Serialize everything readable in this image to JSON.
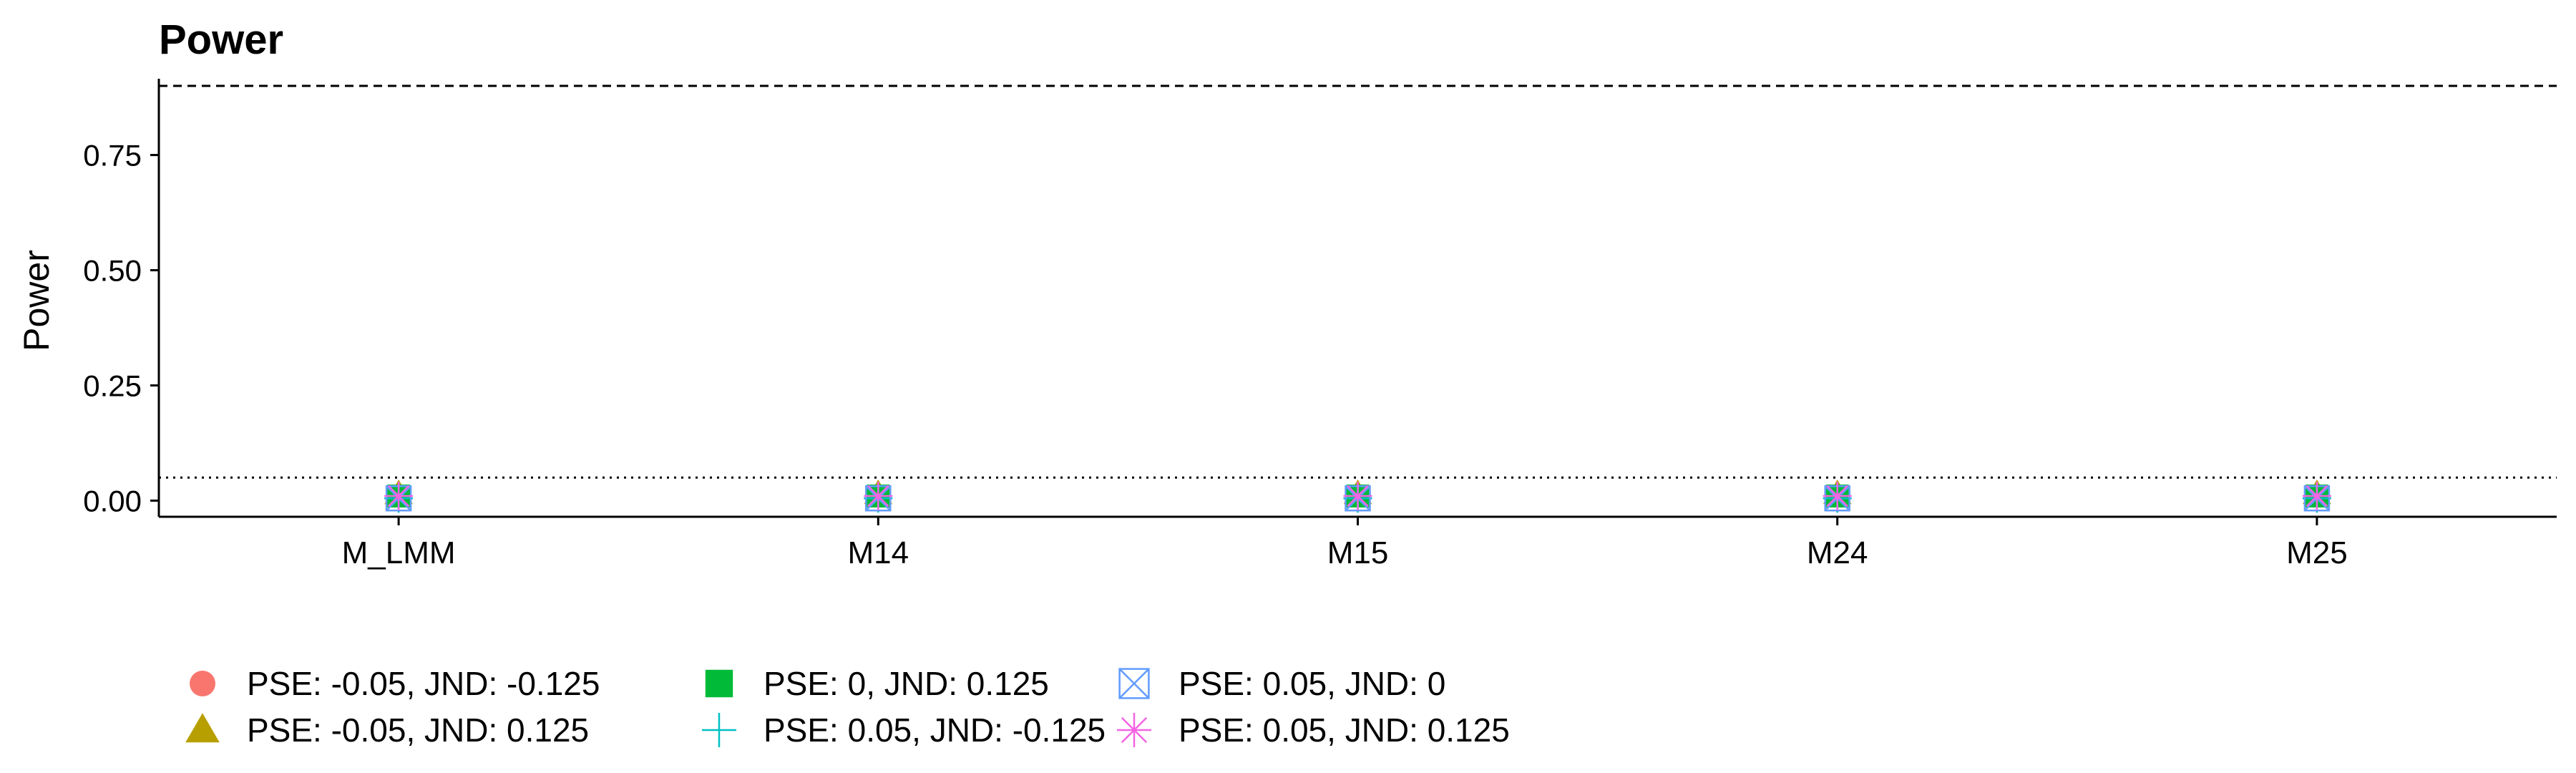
{
  "chart_data": {
    "type": "scatter",
    "title": "Power",
    "xlabel": "",
    "ylabel": "Power",
    "categories": [
      "M_LMM",
      "M14",
      "M15",
      "M24",
      "M25"
    ],
    "ylim": [
      -0.035,
      0.9
    ],
    "yticks": [
      0.0,
      0.25,
      0.5,
      0.75
    ],
    "ytick_labels": [
      "0.00",
      "0.25",
      "0.50",
      "0.75"
    ],
    "grid": false,
    "legend_position": "bottom",
    "reference_lines": [
      {
        "y": 0.9,
        "style": "dashed"
      },
      {
        "y": 0.05,
        "style": "dotted"
      }
    ],
    "series": [
      {
        "name": "PSE: -0.05, JND: -0.125",
        "shape": "circle",
        "color": "#F8766D",
        "values": [
          0.01,
          0.01,
          0.01,
          0.01,
          0.01
        ]
      },
      {
        "name": "PSE: -0.05, JND: 0.125",
        "shape": "triangle",
        "color": "#B79F00",
        "values": [
          0.015,
          0.015,
          0.015,
          0.015,
          0.015
        ]
      },
      {
        "name": "PSE: 0, JND: 0.125",
        "shape": "square",
        "color": "#00BA38",
        "values": [
          0.01,
          0.01,
          0.01,
          0.01,
          0.01
        ]
      },
      {
        "name": "PSE: 0.05, JND: -0.125",
        "shape": "plus",
        "color": "#00BFC4",
        "values": [
          0.005,
          0.005,
          0.005,
          0.005,
          0.005
        ]
      },
      {
        "name": "PSE: 0.05, JND: 0",
        "shape": "square-x",
        "color": "#619CFF",
        "values": [
          0.005,
          0.005,
          0.005,
          0.005,
          0.005
        ]
      },
      {
        "name": "PSE: 0.05, JND: 0.125",
        "shape": "asterisk",
        "color": "#F564E3",
        "values": [
          0.01,
          0.01,
          0.01,
          0.01,
          0.01
        ]
      }
    ]
  }
}
